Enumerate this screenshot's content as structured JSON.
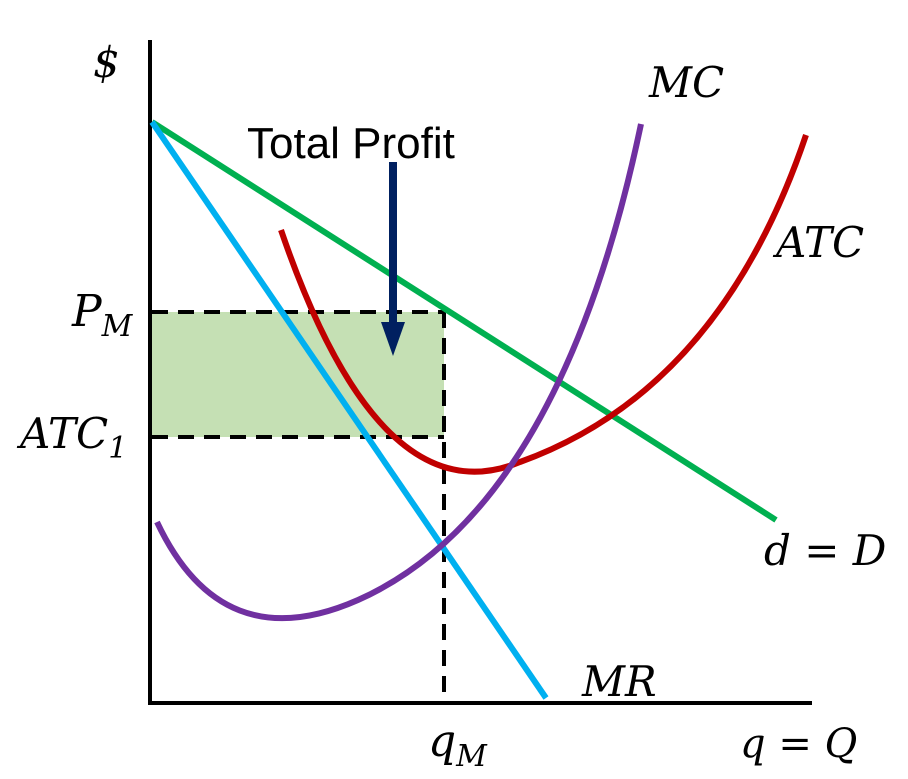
{
  "axes": {
    "y_label": "$",
    "x_label": "q = Q"
  },
  "curves": {
    "mc": {
      "label": "MC",
      "color": "#7030a0"
    },
    "atc": {
      "label": "ATC",
      "color": "#c00000"
    },
    "demand": {
      "label": "d = D",
      "color": "#00b050"
    },
    "mr": {
      "label": "MR",
      "color": "#00b0f0"
    }
  },
  "price_label": {
    "main": "P",
    "sub": "M"
  },
  "cost_label": {
    "main": "ATC",
    "sub": "1"
  },
  "quantity_label": {
    "main": "q",
    "sub": "M"
  },
  "profit": {
    "label": "Total Profit",
    "fill_color": "#c5e0b4",
    "arrow_color": "#002060"
  }
}
